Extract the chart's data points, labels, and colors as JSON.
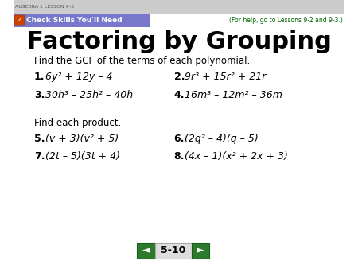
{
  "title": "Factoring by Grouping",
  "top_left_text": "ALGEBRA 1 LESSON 9-3",
  "check_skills_text": "Check Skills You'll Need",
  "for_help_text": "(For help, go to Lessons 9-2 and 9-3.)",
  "section1_header": "Find the GCF of the terms of each polynomial.",
  "section2_header": "Find each product.",
  "slide_number": "5-10",
  "bg_color": "#ffffff",
  "green_text_color": "#006600",
  "nav_button_color": "#2d7a2d",
  "text_color": "#000000",
  "header_bg": "#cccccc",
  "check_bar_color": "#7777cc",
  "check_icon_color": "#cc4400"
}
